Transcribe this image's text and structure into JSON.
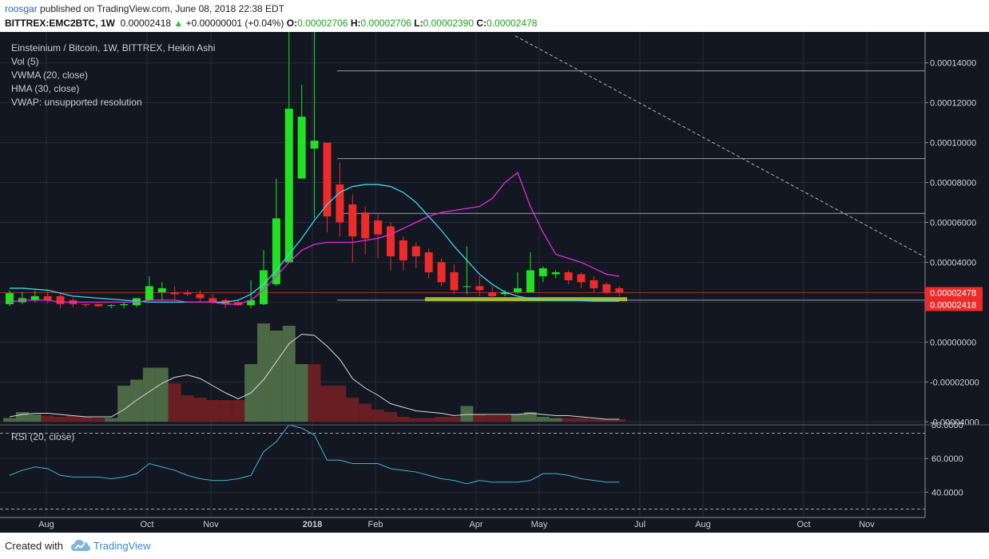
{
  "header": {
    "user": "roosgar",
    "published_text": "published on TradingView.com, June 08, 2018 22:38 EDT",
    "symbol": "BITTREX:EMC2BTC, 1W",
    "last": "0.00002418",
    "change_arrow": "▲",
    "change": "+0.00000001 (+0.04%)",
    "o_label": "O:",
    "o_value": "0.00002706",
    "h_label": "H:",
    "h_value": "0.00002706",
    "l_label": "L:",
    "l_value": "0.00002390",
    "c_label": "C:",
    "c_value": "0.00002478"
  },
  "legend": {
    "title": "Einsteinium / Bitcoin, 1W, BITTREX, Heikin Ashi",
    "vol": "Vol (5)",
    "vwma": "VWMA (20, close)",
    "hma": "HMA (30, close)",
    "vwap": "VWAP: unsupported resolution",
    "rsi": "RSI (20, close)"
  },
  "price_badges": [
    {
      "value": "0.00002478",
      "price": 2.478e-05
    },
    {
      "value": "0.00002418",
      "price": 2.418e-05
    }
  ],
  "footer": {
    "created_with": "Created with",
    "brand": "TradingView"
  },
  "colors": {
    "background": "#131722",
    "up": "#22e022",
    "down": "#ee2b2b",
    "volume_up": "#4f6e48",
    "volume_down": "#6e1f24",
    "vwma": "#3ed8e8",
    "hma": "#e02ee0",
    "volume_ma": "#d8d8d8",
    "rsi": "#3fb6cf",
    "support_zone": "#b3c832",
    "grid": "#262b3a",
    "badge": "#ee2b2b"
  },
  "chart_data": [
    {
      "type": "candlestick",
      "title": "Einsteinium / Bitcoin, 1W, BITTREX, Heikin Ashi",
      "x_tick_labels": [
        "Aug",
        "Oct",
        "Nov",
        "2018",
        "Feb",
        "Apr",
        "May",
        "Jul",
        "Aug",
        "Oct",
        "Nov"
      ],
      "y_ticks": [
        0.00014,
        0.00012,
        0.0001,
        8e-05,
        6e-05,
        4e-05,
        2e-05,
        0.0,
        -2e-05,
        -4e-05
      ],
      "y_tick_labels": [
        "0.00014000",
        "0.00012000",
        "0.00010000",
        "0.00008000",
        "0.00006000",
        "0.00004000",
        "0.00002000",
        "0.00000000",
        "-0.00002000",
        "-0.00004000"
      ],
      "ylim": [
        -4.15e-05,
        0.0001555
      ],
      "candles": [
        {
          "o": 1.9e-05,
          "h": 2.6e-05,
          "l": 1.8e-05,
          "c": 2.45e-05
        },
        {
          "o": 2e-05,
          "h": 2.5e-05,
          "l": 1.9e-05,
          "c": 2.2e-05
        },
        {
          "o": 2.1e-05,
          "h": 2.6e-05,
          "l": 2e-05,
          "c": 2.3e-05
        },
        {
          "o": 2.3e-05,
          "h": 2.6e-05,
          "l": 1.95e-05,
          "c": 2.1e-05
        },
        {
          "o": 2.3e-05,
          "h": 2.4e-05,
          "l": 1.7e-05,
          "c": 1.9e-05
        },
        {
          "o": 2.1e-05,
          "h": 2.2e-05,
          "l": 1.75e-05,
          "c": 1.9e-05
        },
        {
          "o": 1.9e-05,
          "h": 1.95e-05,
          "l": 1.75e-05,
          "c": 1.85e-05
        },
        {
          "o": 1.9e-05,
          "h": 1.95e-05,
          "l": 1.75e-05,
          "c": 1.8e-05
        },
        {
          "o": 1.85e-05,
          "h": 1.9e-05,
          "l": 1.7e-05,
          "c": 1.85e-05
        },
        {
          "o": 1.85e-05,
          "h": 2e-05,
          "l": 1.7e-05,
          "c": 1.9e-05
        },
        {
          "o": 1.85e-05,
          "h": 2.2e-05,
          "l": 1.75e-05,
          "c": 2.2e-05
        },
        {
          "o": 2.1e-05,
          "h": 3.3e-05,
          "l": 2.05e-05,
          "c": 2.8e-05
        },
        {
          "o": 2.5e-05,
          "h": 3e-05,
          "l": 2.1e-05,
          "c": 2.7e-05
        },
        {
          "o": 2.5e-05,
          "h": 2.8e-05,
          "l": 2.1e-05,
          "c": 2.4e-05
        },
        {
          "o": 2.5e-05,
          "h": 2.6e-05,
          "l": 2.3e-05,
          "c": 2.4e-05
        },
        {
          "o": 2.4e-05,
          "h": 2.6e-05,
          "l": 2e-05,
          "c": 2.2e-05
        },
        {
          "o": 2.2e-05,
          "h": 2.4e-05,
          "l": 1.9e-05,
          "c": 2e-05
        },
        {
          "o": 2.1e-05,
          "h": 2.2e-05,
          "l": 1.7e-05,
          "c": 1.9e-05
        },
        {
          "o": 2e-05,
          "h": 2.1e-05,
          "l": 1.8e-05,
          "c": 1.85e-05
        },
        {
          "o": 1.85e-05,
          "h": 3.1e-05,
          "l": 1.7e-05,
          "c": 2.1e-05
        },
        {
          "o": 1.9e-05,
          "h": 4.6e-05,
          "l": 1.85e-05,
          "c": 3.6e-05
        },
        {
          "o": 2.9e-05,
          "h": 8.2e-05,
          "l": 2.8e-05,
          "c": 6.2e-05
        },
        {
          "o": 4e-05,
          "h": 0.000162,
          "l": 4e-05,
          "c": 0.000117
        },
        {
          "o": 8.2e-05,
          "h": 0.000129,
          "l": 8.2e-05,
          "c": 0.000113
        },
        {
          "o": 9.7e-05,
          "h": 0.000162,
          "l": 6.2e-05,
          "c": 0.000101
        },
        {
          "o": 0.0001,
          "h": 0.0001,
          "l": 5.5e-05,
          "c": 6.3e-05
        },
        {
          "o": 7.9e-05,
          "h": 9e-05,
          "l": 5.3e-05,
          "c": 6e-05
        },
        {
          "o": 6.9e-05,
          "h": 7.4e-05,
          "l": 4e-05,
          "c": 5.3e-05
        },
        {
          "o": 6.5e-05,
          "h": 6.8e-05,
          "l": 4.4e-05,
          "c": 5.2e-05
        },
        {
          "o": 6.1e-05,
          "h": 6.4e-05,
          "l": 4.2e-05,
          "c": 5.4e-05
        },
        {
          "o": 5.8e-05,
          "h": 6e-05,
          "l": 3.6e-05,
          "c": 4.3e-05
        },
        {
          "o": 5.1e-05,
          "h": 5.3e-05,
          "l": 3.6e-05,
          "c": 4.1e-05
        },
        {
          "o": 4.8e-05,
          "h": 5e-05,
          "l": 3.7e-05,
          "c": 4.3e-05
        },
        {
          "o": 4.5e-05,
          "h": 4.7e-05,
          "l": 3.2e-05,
          "c": 3.5e-05
        },
        {
          "o": 4e-05,
          "h": 4.2e-05,
          "l": 2.8e-05,
          "c": 3e-05
        },
        {
          "o": 3.5e-05,
          "h": 3.9e-05,
          "l": 2.4e-05,
          "c": 2.6e-05
        },
        {
          "o": 2.8e-05,
          "h": 4.8e-05,
          "l": 2.4e-05,
          "c": 2.8e-05
        },
        {
          "o": 2.8e-05,
          "h": 3.3e-05,
          "l": 2.3e-05,
          "c": 2.6e-05
        },
        {
          "o": 2.5e-05,
          "h": 2.8e-05,
          "l": 2.2e-05,
          "c": 2.3e-05
        },
        {
          "o": 2.4e-05,
          "h": 2.6e-05,
          "l": 2.3e-05,
          "c": 2.5e-05
        },
        {
          "o": 2.5e-05,
          "h": 3.5e-05,
          "l": 2.4e-05,
          "c": 2.7e-05
        },
        {
          "o": 2.5e-05,
          "h": 4.5e-05,
          "l": 2.5e-05,
          "c": 3.6e-05
        },
        {
          "o": 3.3e-05,
          "h": 3.8e-05,
          "l": 3e-05,
          "c": 3.7e-05
        },
        {
          "o": 3.4e-05,
          "h": 3.6e-05,
          "l": 3.2e-05,
          "c": 3.5e-05
        },
        {
          "o": 3.5e-05,
          "h": 3.6e-05,
          "l": 2.9e-05,
          "c": 3.1e-05
        },
        {
          "o": 3.4e-05,
          "h": 3.5e-05,
          "l": 2.7e-05,
          "c": 3e-05
        },
        {
          "o": 3.1e-05,
          "h": 3.3e-05,
          "l": 2.5e-05,
          "c": 2.7e-05
        },
        {
          "o": 2.9e-05,
          "h": 3e-05,
          "l": 2.4e-05,
          "c": 2.5e-05
        },
        {
          "o": 2.7e-05,
          "h": 2.8e-05,
          "l": 2.3e-05,
          "c": 2.5e-05
        }
      ],
      "vwma_series": [
        2.7e-05,
        2.7e-05,
        2.65e-05,
        2.6e-05,
        2.45e-05,
        2.3e-05,
        2.25e-05,
        2.2e-05,
        2.15e-05,
        2.1e-05,
        2.05e-05,
        2e-05,
        2e-05,
        2e-05,
        2e-05,
        2e-05,
        2e-05,
        2e-05,
        2.1e-05,
        2.4e-05,
        2.9e-05,
        3.6e-05,
        4.4e-05,
        5.2e-05,
        6.1e-05,
        6.9e-05,
        7.5e-05,
        7.8e-05,
        7.9e-05,
        7.9e-05,
        7.8e-05,
        7.5e-05,
        7e-05,
        6.3e-05,
        5.6e-05,
        4.8e-05,
        4.1e-05,
        3.4e-05,
        2.9e-05,
        2.5e-05,
        2.3e-05,
        2.18e-05,
        2.12e-05,
        2.1e-05,
        2.1e-05,
        2.08e-05,
        2.05e-05,
        2.05e-05,
        2.05e-05
      ],
      "hma_series": [
        2e-05,
        2.1e-05,
        2.1e-05,
        2.1e-05,
        2e-05,
        2e-05,
        2e-05,
        2e-05,
        2e-05,
        2e-05,
        2e-05,
        2.1e-05,
        2.1e-05,
        2.1e-05,
        2e-05,
        2e-05,
        2e-05,
        1.9e-05,
        1.9e-05,
        2.1e-05,
        2.6e-05,
        3.3e-05,
        4e-05,
        4.6e-05,
        4.9e-05,
        5e-05,
        5e-05,
        5e-05,
        5.1e-05,
        5.2e-05,
        5.4e-05,
        5.7e-05,
        6e-05,
        6.3e-05,
        6.5e-05,
        6.6e-05,
        6.7e-05,
        6.8e-05,
        7.2e-05,
        8e-05,
        8.5e-05,
        6.8e-05,
        5.5e-05,
        4.4e-05,
        4.2e-05,
        4e-05,
        3.7e-05,
        3.4e-05,
        3.3e-05
      ],
      "horizontal_levels": [
        0.000136,
        9.2e-05,
        6.45e-05,
        2.1e-05
      ],
      "support_zone": [
        2.05e-05,
        2.25e-05
      ],
      "current_price_line": 2.478e-05,
      "volume": {
        "name": "Vol (5)",
        "up": [
          true,
          true,
          true,
          false,
          false,
          false,
          false,
          false,
          true,
          true,
          true,
          true,
          true,
          false,
          false,
          false,
          false,
          false,
          false,
          true,
          true,
          true,
          true,
          true,
          false,
          false,
          false,
          false,
          false,
          false,
          false,
          false,
          false,
          false,
          false,
          false,
          true,
          false,
          false,
          false,
          true,
          true,
          true,
          true,
          false,
          false,
          false,
          false,
          false
        ],
        "values": [
          0.3,
          0.8,
          0.6,
          0.5,
          0.4,
          0.5,
          0.4,
          0.3,
          0.3,
          3.0,
          3.5,
          4.5,
          4.5,
          3.2,
          2.2,
          2.0,
          1.8,
          1.8,
          1.8,
          4.8,
          8.2,
          7.6,
          8.0,
          4.8,
          4.8,
          3.0,
          3.0,
          2.0,
          1.5,
          1.0,
          0.8,
          0.4,
          0.3,
          0.3,
          0.4,
          0.4,
          1.3,
          0.6,
          0.5,
          0.5,
          0.6,
          0.8,
          0.4,
          0.3,
          0.3,
          0.3,
          0.2,
          0.2,
          0.2
        ],
        "ma": [
          0.4,
          0.6,
          0.7,
          0.7,
          0.6,
          0.5,
          0.4,
          0.4,
          0.4,
          1.0,
          1.8,
          2.5,
          3.2,
          3.7,
          3.9,
          3.6,
          3.0,
          2.4,
          1.9,
          2.4,
          3.5,
          5.0,
          6.5,
          7.3,
          7.2,
          6.3,
          5.2,
          3.6,
          2.8,
          2.2,
          1.5,
          1.2,
          0.9,
          0.8,
          0.7,
          0.5,
          0.6,
          0.6,
          0.6,
          0.6,
          0.6,
          0.7,
          0.6,
          0.5,
          0.5,
          0.4,
          0.3,
          0.2,
          0.2
        ]
      },
      "rsi": {
        "name": "RSI (20, close)",
        "y_ticks": [
          80,
          60,
          40
        ],
        "y_tick_labels": [
          "80.0000",
          "60.0000",
          "40.0000"
        ],
        "ylim": [
          25,
          80
        ],
        "levels": [
          75,
          30
        ],
        "values": [
          50,
          53,
          55,
          54,
          50,
          49,
          49,
          49,
          48,
          49,
          51,
          57,
          55,
          53,
          50,
          48,
          47,
          47,
          48,
          50,
          64,
          70,
          80,
          78,
          74,
          59,
          59,
          57,
          57,
          57,
          54,
          53,
          52,
          50,
          48,
          47,
          45,
          47,
          46,
          46,
          46,
          47,
          51,
          51,
          50,
          48,
          47,
          46,
          46
        ]
      }
    }
  ]
}
